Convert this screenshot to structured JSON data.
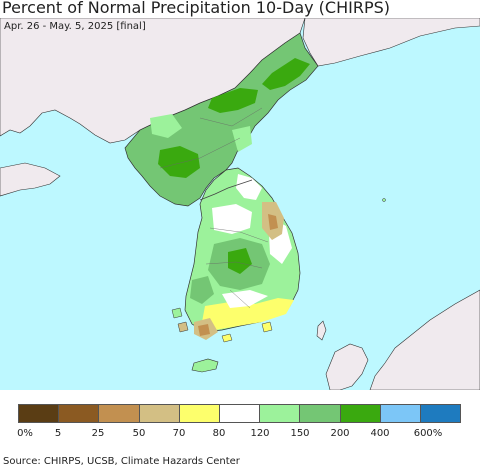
{
  "header": {
    "title": "Percent of Normal Precipitation 10-Day (CHIRPS)",
    "subtitle": "Apr. 26 - May. 5, 2025 [final]"
  },
  "map": {
    "colors": {
      "sea": "#bdf8ff",
      "land_outside": "#f0eaee",
      "pct_0_5": "#5a3d14",
      "pct_5_25": "#8b5a22",
      "pct_25_50": "#c29050",
      "pct_50_70": "#d3bf84",
      "pct_70_80": "#fdff6c",
      "pct_80_120": "#ffffff",
      "pct_120_150": "#9cf29b",
      "pct_150_200": "#74c674",
      "pct_200_400": "#3aa90f",
      "pct_400_600": "#7cc6f7",
      "pct_600_plus": "#1e7bbf"
    }
  },
  "legend": {
    "colors": [
      "#5a3d14",
      "#8b5a22",
      "#c29050",
      "#d3bf84",
      "#fdff6c",
      "#ffffff",
      "#9cf29b",
      "#74c674",
      "#3aa90f",
      "#7cc6f7",
      "#1e7bbf"
    ],
    "labels": [
      "0%",
      "5",
      "25",
      "50",
      "70",
      "80",
      "120",
      "150",
      "200",
      "400",
      "600%"
    ]
  },
  "footer": {
    "source": "Source: CHIRPS, UCSB, Climate Hazards Center"
  }
}
